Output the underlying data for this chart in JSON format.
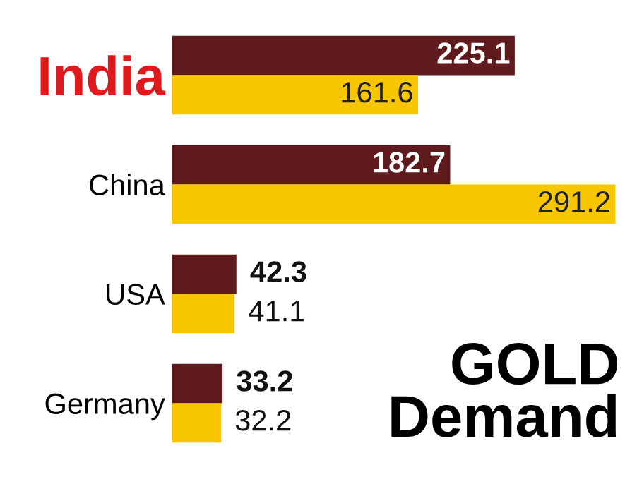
{
  "chart_data": {
    "type": "bar",
    "orientation": "horizontal",
    "title": "GOLD Demand",
    "categories": [
      "India",
      "China",
      "USA",
      "Germany"
    ],
    "series": [
      {
        "color": "#5e1a1c",
        "values": [
          225.1,
          182.7,
          42.3,
          33.2
        ]
      },
      {
        "color": "#f7c600",
        "values": [
          161.6,
          291.2,
          41.1,
          32.2
        ]
      }
    ],
    "data_labels": true,
    "grid": false,
    "legend": false,
    "tick_labels": "y"
  }
}
